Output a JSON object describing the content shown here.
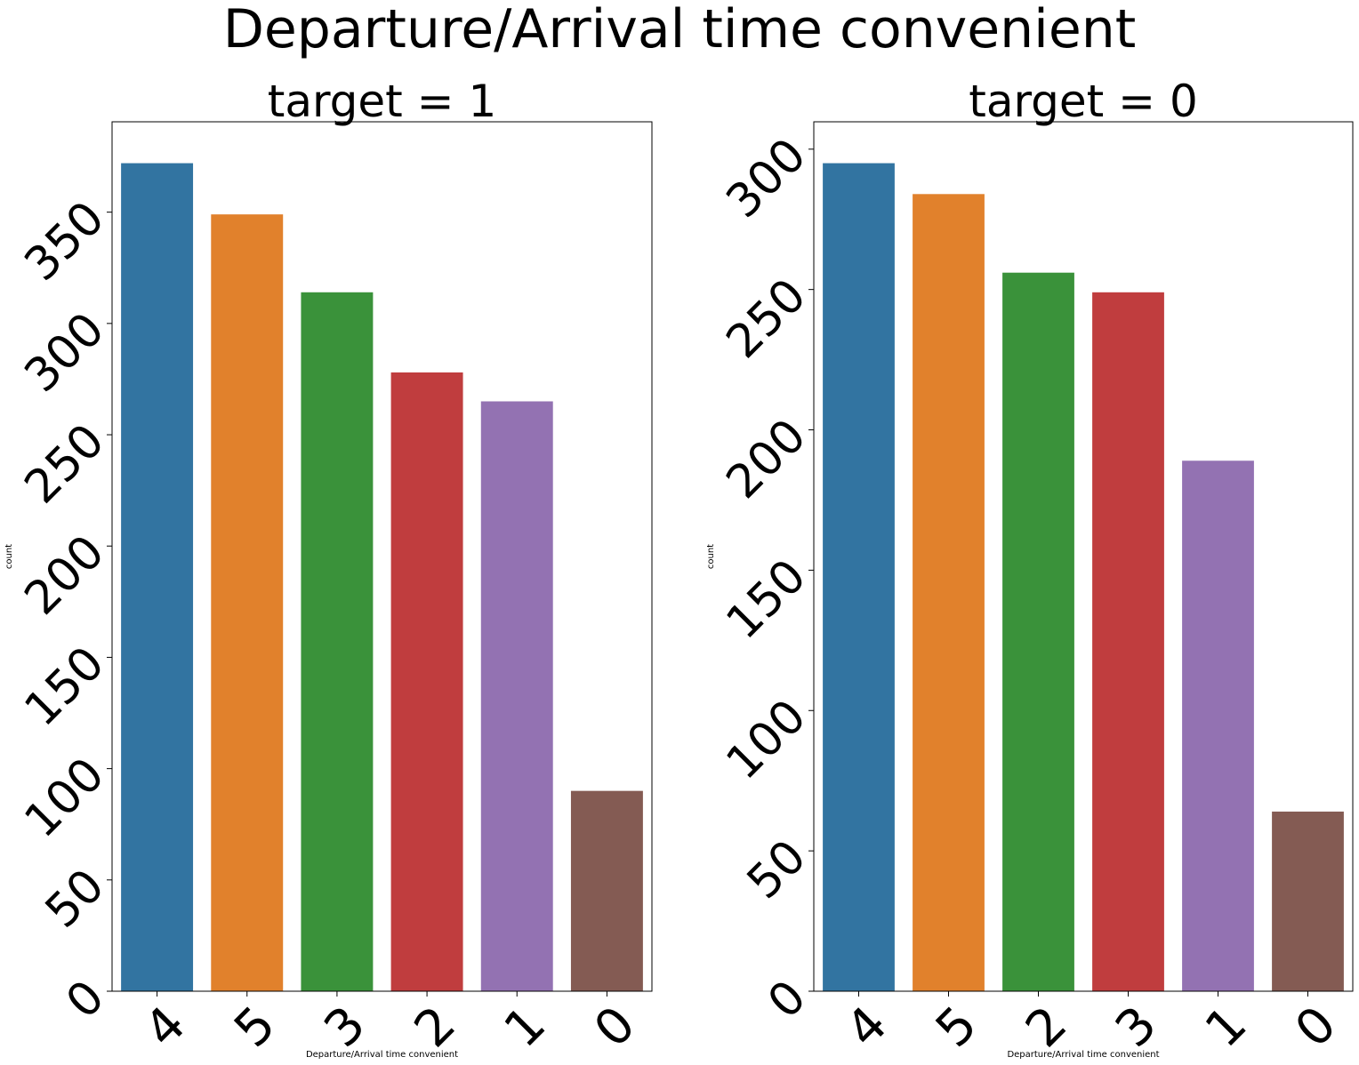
{
  "suptitle": "Departure/Arrival time convenient",
  "chart_data": [
    {
      "type": "bar",
      "title": "target = 1",
      "xlabel": "Departure/Arrival time convenient",
      "ylabel": "count",
      "categories": [
        "4",
        "5",
        "3",
        "2",
        "1",
        "0"
      ],
      "values": [
        372,
        349,
        314,
        278,
        265,
        90
      ],
      "colors": [
        "#3274a1",
        "#e1812c",
        "#3a923a",
        "#c03d3e",
        "#9372b2",
        "#845b53"
      ],
      "yticks": [
        0,
        50,
        100,
        150,
        200,
        250,
        300,
        350
      ],
      "ylim": [
        0,
        390.6
      ],
      "grid": false,
      "legend": "none"
    },
    {
      "type": "bar",
      "title": "target = 0",
      "xlabel": "Departure/Arrival time convenient",
      "ylabel": "count",
      "categories": [
        "4",
        "5",
        "2",
        "3",
        "1",
        "0"
      ],
      "values": [
        295,
        284,
        256,
        249,
        189,
        64
      ],
      "colors": [
        "#3274a1",
        "#e1812c",
        "#3a923a",
        "#c03d3e",
        "#9372b2",
        "#845b53"
      ],
      "yticks": [
        0,
        50,
        100,
        150,
        200,
        250,
        300
      ],
      "ylim": [
        0,
        309.75
      ],
      "grid": false,
      "legend": "none"
    }
  ]
}
